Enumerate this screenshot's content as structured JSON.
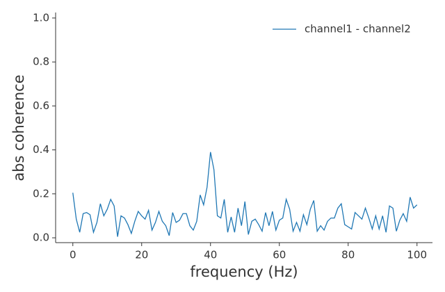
{
  "chart_data": {
    "type": "line",
    "xlabel": "frequency (Hz)",
    "ylabel": "abs coherence",
    "x": [
      0,
      1,
      2,
      3,
      4,
      5,
      6,
      7,
      8,
      9,
      10,
      11,
      12,
      13,
      14,
      15,
      16,
      17,
      18,
      19,
      20,
      21,
      22,
      23,
      24,
      25,
      26,
      27,
      28,
      29,
      30,
      31,
      32,
      33,
      34,
      35,
      36,
      37,
      38,
      39,
      40,
      41,
      42,
      43,
      44,
      45,
      46,
      47,
      48,
      49,
      50,
      51,
      52,
      53,
      54,
      55,
      56,
      57,
      58,
      59,
      60,
      61,
      62,
      63,
      64,
      65,
      66,
      67,
      68,
      69,
      70,
      71,
      72,
      73,
      74,
      75,
      76,
      77,
      78,
      79,
      80,
      81,
      82,
      83,
      84,
      85,
      86,
      87,
      88,
      89,
      90,
      91,
      92,
      93,
      94,
      95,
      96,
      97,
      98,
      99,
      100
    ],
    "series": [
      {
        "name": "channel1 - channel2",
        "color": "#1f77b4",
        "values": [
          0.205,
          0.085,
          0.025,
          0.11,
          0.115,
          0.105,
          0.025,
          0.07,
          0.155,
          0.1,
          0.13,
          0.175,
          0.145,
          0.005,
          0.1,
          0.09,
          0.06,
          0.02,
          0.075,
          0.12,
          0.1,
          0.085,
          0.125,
          0.035,
          0.07,
          0.12,
          0.075,
          0.055,
          0.01,
          0.115,
          0.07,
          0.08,
          0.11,
          0.11,
          0.055,
          0.035,
          0.075,
          0.195,
          0.15,
          0.23,
          0.39,
          0.31,
          0.1,
          0.09,
          0.175,
          0.025,
          0.095,
          0.025,
          0.135,
          0.055,
          0.165,
          0.015,
          0.075,
          0.085,
          0.06,
          0.03,
          0.115,
          0.055,
          0.12,
          0.035,
          0.08,
          0.09,
          0.175,
          0.13,
          0.03,
          0.07,
          0.03,
          0.105,
          0.06,
          0.13,
          0.17,
          0.03,
          0.055,
          0.035,
          0.075,
          0.09,
          0.09,
          0.135,
          0.155,
          0.06,
          0.05,
          0.04,
          0.115,
          0.1,
          0.085,
          0.135,
          0.09,
          0.04,
          0.1,
          0.04,
          0.1,
          0.025,
          0.145,
          0.135,
          0.03,
          0.08,
          0.11,
          0.075,
          0.185,
          0.135,
          0.15
        ]
      }
    ],
    "xlim": [
      -5,
      104.5
    ],
    "ylim": [
      -0.022,
      1.025
    ],
    "xticks": [
      0,
      20,
      40,
      60,
      80,
      100
    ],
    "yticks": [
      {
        "value": 0,
        "label": "0.0"
      },
      {
        "value": 0.2,
        "label": "0.2"
      },
      {
        "value": 0.4,
        "label": "0.4"
      },
      {
        "value": 0.6,
        "label": "0.6"
      },
      {
        "value": 0.8,
        "label": "0.8"
      },
      {
        "value": 1,
        "label": "1.0"
      }
    ],
    "legend": "upper right"
  }
}
